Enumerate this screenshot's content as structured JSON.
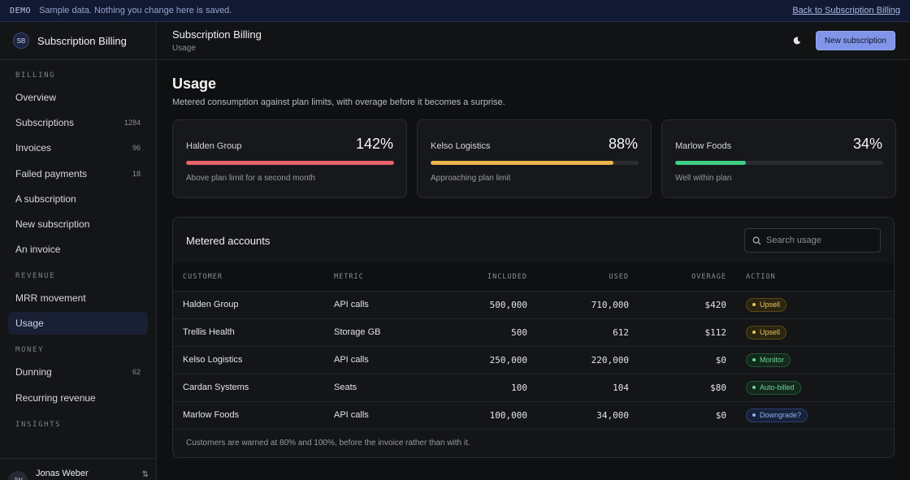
{
  "banner": {
    "tag": "DEMO",
    "text": "Sample data. Nothing you change here is saved.",
    "link": "Back to Subscription Billing"
  },
  "brand": {
    "initials": "SB",
    "name": "Subscription Billing"
  },
  "sidebar": {
    "sections": [
      {
        "label": "BILLING",
        "items": [
          {
            "label": "Overview",
            "count": ""
          },
          {
            "label": "Subscriptions",
            "count": "1284"
          },
          {
            "label": "Invoices",
            "count": "96"
          },
          {
            "label": "Failed payments",
            "count": "18"
          },
          {
            "label": "A subscription",
            "count": ""
          },
          {
            "label": "New subscription",
            "count": ""
          },
          {
            "label": "An invoice",
            "count": ""
          }
        ]
      },
      {
        "label": "REVENUE",
        "items": [
          {
            "label": "MRR movement",
            "count": ""
          },
          {
            "label": "Usage",
            "count": "",
            "active": true
          }
        ]
      },
      {
        "label": "MONEY",
        "items": [
          {
            "label": "Dunning",
            "count": "62"
          },
          {
            "label": "Recurring revenue",
            "count": ""
          }
        ]
      },
      {
        "label": "INSIGHTS",
        "items": []
      }
    ],
    "user": {
      "initials": "JW",
      "name": "Jonas Weber",
      "switch_icon": "swap-icon"
    }
  },
  "header": {
    "title": "Subscription Billing",
    "subtitle": "Usage",
    "theme_icon": "moon-icon",
    "new_button": "New subscription"
  },
  "page": {
    "title": "Usage",
    "description": "Metered consumption against plan limits, with overage before it becomes a surprise."
  },
  "cards": [
    {
      "name": "Halden Group",
      "percent": "142%",
      "fill": 1.0,
      "color": "#e8636a",
      "note": "Above plan limit for a second month"
    },
    {
      "name": "Kelso Logistics",
      "percent": "88%",
      "fill": 0.88,
      "color": "#eab54a",
      "note": "Approaching plan limit"
    },
    {
      "name": "Marlow Foods",
      "percent": "34%",
      "fill": 0.34,
      "color": "#3fcf85",
      "note": "Well within plan"
    }
  ],
  "table": {
    "title": "Metered accounts",
    "search_placeholder": "Search usage",
    "columns": [
      "CUSTOMER",
      "METRIC",
      "INCLUDED",
      "USED",
      "OVERAGE",
      "ACTION"
    ],
    "rows": [
      {
        "customer": "Halden Group",
        "metric": "API calls",
        "included": "500,000",
        "used": "710,000",
        "overage": "$420",
        "action": "Upsell",
        "action_type": "upsell"
      },
      {
        "customer": "Trellis Health",
        "metric": "Storage GB",
        "included": "500",
        "used": "612",
        "overage": "$112",
        "action": "Upsell",
        "action_type": "upsell"
      },
      {
        "customer": "Kelso Logistics",
        "metric": "API calls",
        "included": "250,000",
        "used": "220,000",
        "overage": "$0",
        "action": "Monitor",
        "action_type": "monitor"
      },
      {
        "customer": "Cardan Systems",
        "metric": "Seats",
        "included": "100",
        "used": "104",
        "overage": "$80",
        "action": "Auto-billed",
        "action_type": "auto"
      },
      {
        "customer": "Marlow Foods",
        "metric": "API calls",
        "included": "100,000",
        "used": "34,000",
        "overage": "$0",
        "action": "Downgrade?",
        "action_type": "down"
      }
    ],
    "footer": "Customers are warned at 80% and 100%, before the invoice rather than with it."
  }
}
